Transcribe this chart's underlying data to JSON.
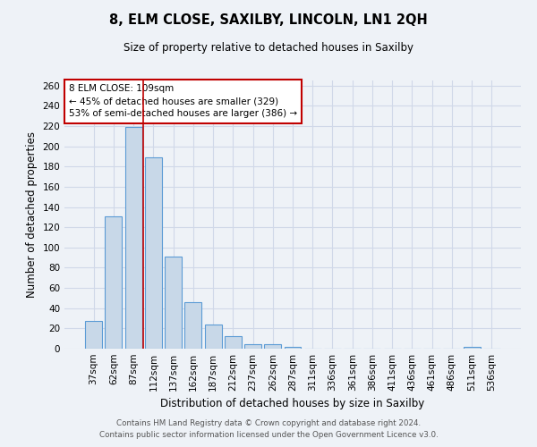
{
  "title_line1": "8, ELM CLOSE, SAXILBY, LINCOLN, LN1 2QH",
  "title_line2": "Size of property relative to detached houses in Saxilby",
  "xlabel": "Distribution of detached houses by size in Saxilby",
  "ylabel": "Number of detached properties",
  "footer_line1": "Contains HM Land Registry data © Crown copyright and database right 2024.",
  "footer_line2": "Contains public sector information licensed under the Open Government Licence v3.0.",
  "bar_labels": [
    "37sqm",
    "62sqm",
    "87sqm",
    "112sqm",
    "137sqm",
    "162sqm",
    "187sqm",
    "212sqm",
    "237sqm",
    "262sqm",
    "287sqm",
    "311sqm",
    "336sqm",
    "361sqm",
    "386sqm",
    "411sqm",
    "436sqm",
    "461sqm",
    "486sqm",
    "511sqm",
    "536sqm"
  ],
  "bar_values": [
    27,
    131,
    219,
    189,
    91,
    46,
    24,
    12,
    4,
    4,
    2,
    0,
    0,
    0,
    0,
    0,
    0,
    0,
    0,
    2,
    0
  ],
  "bar_color": "#c8d8e8",
  "bar_edge_color": "#5b9bd5",
  "grid_color": "#d0d8e8",
  "bg_color": "#eef2f7",
  "vline_color": "#c00000",
  "vline_x_index": 2.5,
  "annotation_text": "8 ELM CLOSE: 109sqm\n← 45% of detached houses are smaller (329)\n53% of semi-detached houses are larger (386) →",
  "annotation_box_color": "#ffffff",
  "annotation_border_color": "#c00000",
  "ylim": [
    0,
    265
  ],
  "yticks": [
    0,
    20,
    40,
    60,
    80,
    100,
    120,
    140,
    160,
    180,
    200,
    220,
    240,
    260
  ]
}
